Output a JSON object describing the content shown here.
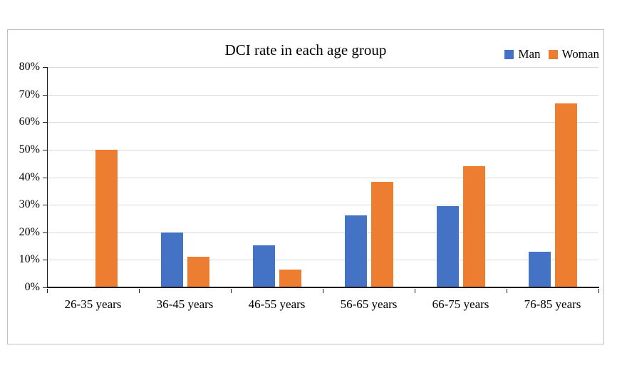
{
  "page": {
    "background": "#ffffff",
    "frame_border_color": "#bfbfbf"
  },
  "chart_data": {
    "type": "bar",
    "title": "DCI rate in each age group",
    "categories": [
      "26-35 years",
      "36-45 years",
      "46-55 years",
      "56-65 years",
      "66-75 years",
      "76-85 years"
    ],
    "series": [
      {
        "name": "Man",
        "color": "#4472C4",
        "values": [
          0,
          20,
          15.2,
          26.2,
          29.4,
          13
        ]
      },
      {
        "name": "Woman",
        "color": "#ED7D31",
        "values": [
          50,
          11.1,
          6.5,
          38.2,
          44.1,
          66.7
        ]
      }
    ],
    "xlabel": "",
    "ylabel": "",
    "ylim": [
      0,
      80
    ],
    "ytick_step": 10,
    "ytick_labels": [
      "0%",
      "10%",
      "20%",
      "30%",
      "40%",
      "50%",
      "60%",
      "70%",
      "80%"
    ],
    "grid": true,
    "gridline_color": "#d9d9d9",
    "axis_color": "#1a1a1a",
    "legend_position": "top-right"
  }
}
